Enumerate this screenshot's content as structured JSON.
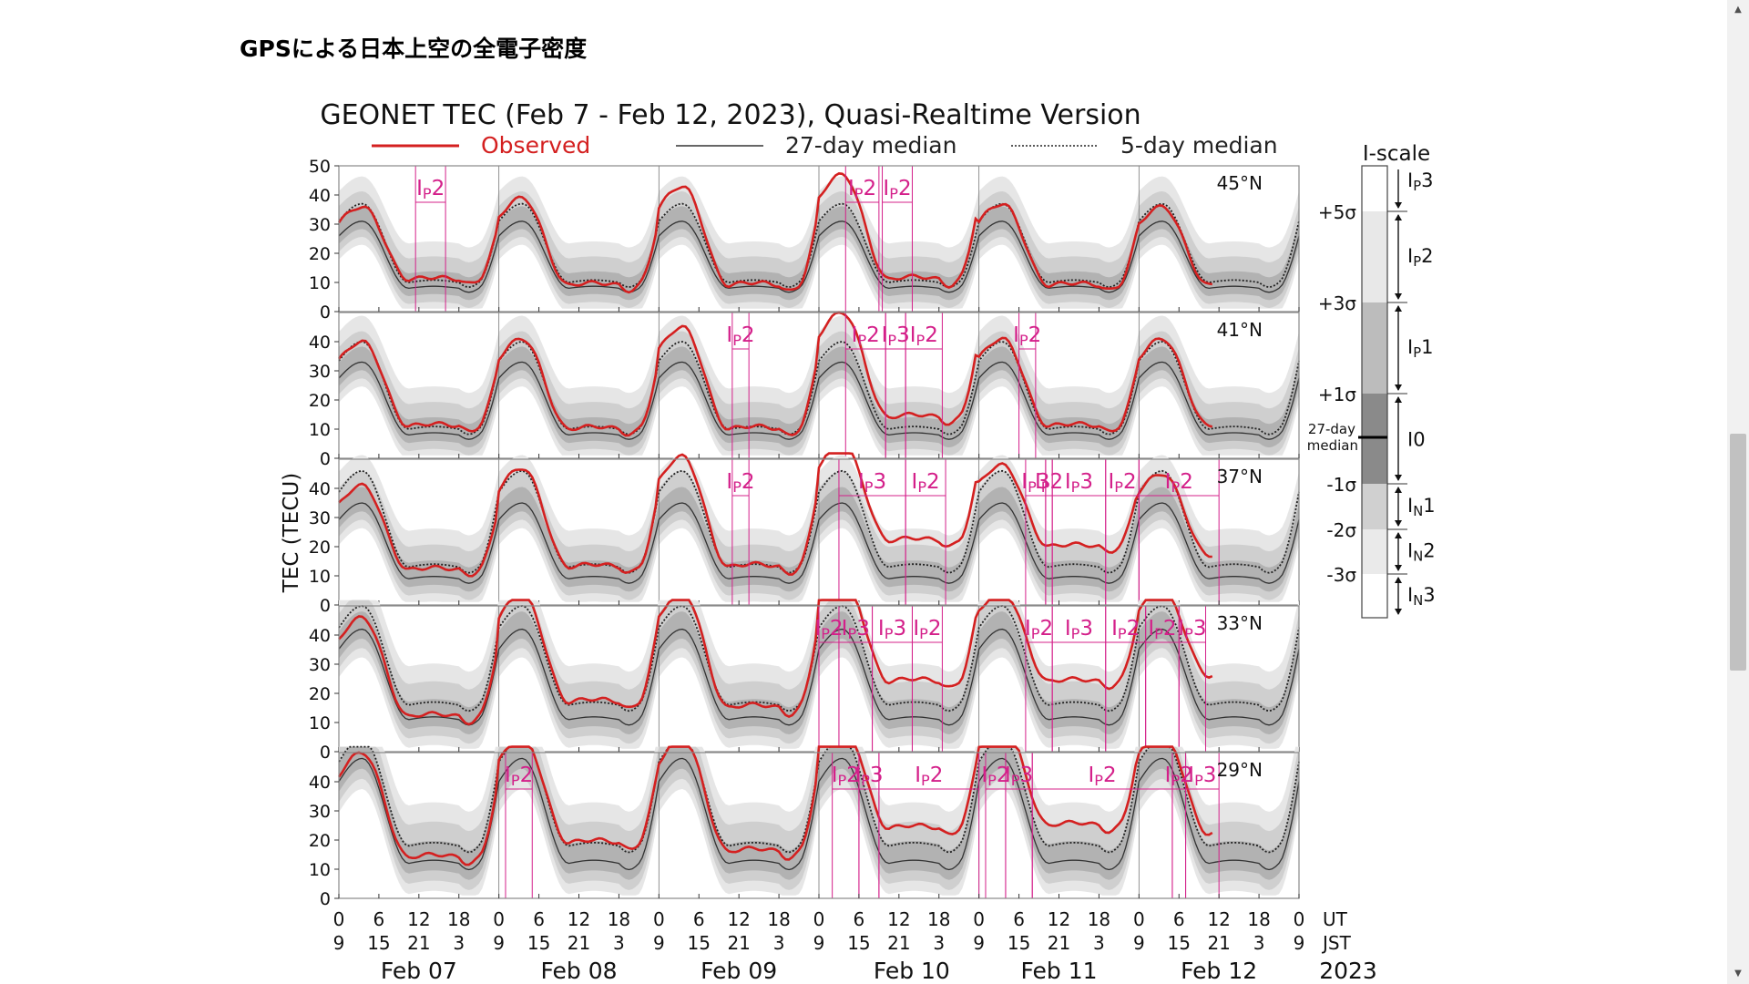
{
  "page": {
    "title": "GPSによる日本上空の全電子密度",
    "scroll_arrow_up": "▲",
    "scroll_arrow_down": "▼"
  },
  "chart_data": {
    "type": "line",
    "title": "GEONET TEC (Feb 7 - Feb 12, 2023), Quasi-Realtime Version",
    "ylabel": "TEC (TECU)",
    "ylim": [
      0,
      50
    ],
    "yticks": [
      "0",
      "10",
      "20",
      "30",
      "40",
      "50"
    ],
    "ut_ticks": [
      "0",
      "6",
      "12",
      "18"
    ],
    "jst_ticks": [
      "9",
      "15",
      "21",
      "3"
    ],
    "ut_label": "UT",
    "jst_label": "JST",
    "days": [
      "Feb 07",
      "Feb 08",
      "Feb 09",
      "Feb 10",
      "Feb 11",
      "Feb 12"
    ],
    "year": "2023",
    "legend": {
      "observed": "Observed",
      "median27": "27-day median",
      "median5": "5-day median",
      "observed_color": "#d42020",
      "median27_color": "#333333",
      "median5_color": "#222222"
    },
    "storm_color": "#d4208a",
    "panels": [
      {
        "lat": "45°N",
        "yticks": [
          "0",
          "10",
          "20",
          "30",
          "40",
          "50"
        ],
        "daily_peak": [
          36,
          39,
          43,
          47,
          37,
          36
        ],
        "daily_night": [
          11,
          9,
          9,
          11,
          9,
          9
        ],
        "median27_peak": 31,
        "median27_night": 8,
        "median5_peak": 37,
        "median5_night": 10,
        "labels": [
          {
            "text": "IP2",
            "x0": 11.5,
            "x1": 16
          },
          {
            "text": "IP2",
            "x0": 76,
            "x1": 81
          },
          {
            "text": "IP2",
            "x0": 81.5,
            "x1": 86
          }
        ]
      },
      {
        "lat": "41°N",
        "yticks": [
          "0",
          "10",
          "20",
          "30",
          "40"
        ],
        "daily_peak": [
          40,
          41,
          45,
          50,
          41,
          41
        ],
        "daily_night": [
          11,
          10,
          10,
          14,
          11,
          11
        ],
        "median27_peak": 33,
        "median27_night": 8,
        "median5_peak": 40,
        "median5_night": 10,
        "labels": [
          {
            "text": "IP2",
            "x0": 59,
            "x1": 61.5
          },
          {
            "text": "IP2",
            "x0": 76,
            "x1": 82
          },
          {
            "text": "IP3",
            "x0": 82,
            "x1": 85
          },
          {
            "text": "IP2",
            "x0": 85,
            "x1": 90.5
          },
          {
            "text": "IP2",
            "x0": 102,
            "x1": 104.5
          }
        ]
      },
      {
        "lat": "37°N",
        "yticks": [
          "0",
          "10",
          "20",
          "30",
          "40"
        ],
        "daily_peak": [
          41,
          47,
          51,
          55,
          48,
          45
        ],
        "daily_night": [
          12,
          13,
          13,
          22,
          20,
          17
        ],
        "median27_peak": 35,
        "median27_night": 9,
        "median5_peak": 46,
        "median5_night": 13,
        "labels": [
          {
            "text": "IP2",
            "x0": 59,
            "x1": 61.5
          },
          {
            "text": "IP3",
            "x0": 75,
            "x1": 85
          },
          {
            "text": "IP2",
            "x0": 85,
            "x1": 91
          },
          {
            "text": "IP3",
            "x0": 103,
            "x1": 106
          },
          {
            "text": "IP2",
            "x0": 106,
            "x1": 107
          },
          {
            "text": "IP3",
            "x0": 107,
            "x1": 115
          },
          {
            "text": "IP2",
            "x0": 115,
            "x1": 120
          },
          {
            "text": "IP2",
            "x0": 120,
            "x1": 132
          }
        ]
      },
      {
        "lat": "33°N",
        "yticks": [
          "0",
          "10",
          "20",
          "30",
          "40"
        ],
        "daily_peak": [
          46,
          54,
          55,
          60,
          55,
          55
        ],
        "daily_night": [
          12,
          17,
          15,
          24,
          24,
          26
        ],
        "median27_peak": 42,
        "median27_night": 11,
        "median5_peak": 50,
        "median5_night": 16,
        "labels": [
          {
            "text": "IP2",
            "x0": 72,
            "x1": 75
          },
          {
            "text": "IP3",
            "x0": 75,
            "x1": 80
          },
          {
            "text": "IP3",
            "x0": 80,
            "x1": 86
          },
          {
            "text": "IP2",
            "x0": 86,
            "x1": 90.5
          },
          {
            "text": "IP2",
            "x0": 103,
            "x1": 107
          },
          {
            "text": "IP3",
            "x0": 107,
            "x1": 115
          },
          {
            "text": "IP2",
            "x0": 115,
            "x1": 121
          },
          {
            "text": "IP2",
            "x0": 121,
            "x1": 126
          },
          {
            "text": "IP3",
            "x0": 126,
            "x1": 130
          }
        ]
      },
      {
        "lat": "29°N",
        "yticks": [
          "0",
          "10",
          "20",
          "30",
          "40"
        ],
        "daily_peak": [
          50,
          55,
          55,
          60,
          60,
          57
        ],
        "daily_night": [
          14,
          19,
          16,
          24,
          25,
          22
        ],
        "median27_peak": 48,
        "median27_night": 12,
        "median5_peak": 55,
        "median5_night": 18,
        "labels": [
          {
            "text": "IP2",
            "x0": 25,
            "x1": 29
          },
          {
            "text": "IP2",
            "x0": 74,
            "x1": 78
          },
          {
            "text": "IP3",
            "x0": 78,
            "x1": 81
          },
          {
            "text": "IP2",
            "x0": 81,
            "x1": 96
          },
          {
            "text": "IP2",
            "x0": 97,
            "x1": 100
          },
          {
            "text": "IP3",
            "x0": 100,
            "x1": 104
          },
          {
            "text": "IP2",
            "x0": 104,
            "x1": 125
          },
          {
            "text": "IP2",
            "x0": 125,
            "x1": 127
          },
          {
            "text": "IP3",
            "x0": 127,
            "x1": 132
          }
        ]
      }
    ],
    "iscale": {
      "title": "I-scale",
      "levels": [
        "+5σ",
        "+3σ",
        "+1σ",
        "27-day median",
        "-1σ",
        "-2σ",
        "-3σ"
      ],
      "classes": [
        "IP3",
        "IP2",
        "IP1",
        "I0",
        "IN1",
        "IN2",
        "IN3"
      ]
    }
  }
}
